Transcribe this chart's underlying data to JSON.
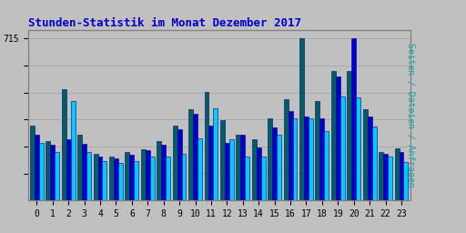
{
  "title": "Stunden-Statistik im Monat Dezember 2017",
  "ylabel_right": "Seiten / Dateien / Anfragen",
  "background_color": "#c0c0c0",
  "plot_bg_color": "#c0c0c0",
  "title_color": "#0000cc",
  "ylabel_right_color": "#00aaaa",
  "bar_colors": [
    "#006060",
    "#0000cc",
    "#00ccff"
  ],
  "bar_edgecolor": "#000080",
  "hours": [
    0,
    1,
    2,
    3,
    4,
    5,
    6,
    7,
    8,
    9,
    10,
    11,
    12,
    13,
    14,
    15,
    16,
    17,
    18,
    19,
    20,
    21,
    22,
    23
  ],
  "series1": [
    330,
    260,
    490,
    290,
    205,
    195,
    215,
    225,
    260,
    330,
    400,
    480,
    355,
    290,
    270,
    360,
    445,
    715,
    440,
    570,
    570,
    400,
    215,
    230
  ],
  "series2": [
    290,
    245,
    270,
    250,
    195,
    185,
    200,
    220,
    245,
    315,
    380,
    330,
    255,
    290,
    235,
    320,
    395,
    370,
    360,
    545,
    715,
    370,
    205,
    215
  ],
  "series3": [
    255,
    215,
    440,
    215,
    175,
    165,
    175,
    195,
    195,
    205,
    275,
    405,
    270,
    195,
    195,
    290,
    360,
    360,
    305,
    460,
    455,
    325,
    195,
    170
  ],
  "ylim": [
    0,
    750
  ],
  "ytick_val": 715,
  "ytick_gridlines": [
    119,
    238,
    357,
    476,
    595,
    715
  ],
  "grid_color": "#aaaaaa",
  "figsize": [
    5.12,
    2.56
  ],
  "dpi": 100
}
